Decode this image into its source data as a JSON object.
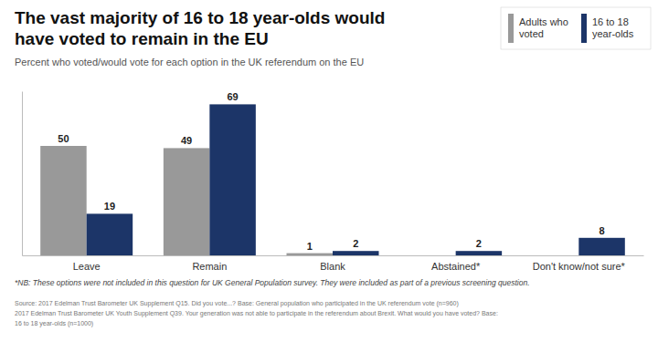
{
  "chart_data": {
    "type": "bar",
    "title": "The vast majority of 16 to 18 year-olds would\nhave voted to remain in the EU",
    "subtitle": "Percent who voted/would vote for each option in the UK referendum on the EU",
    "categories": [
      "Leave",
      "Remain",
      "Blank",
      "Abstained*",
      "Don't know/not sure*"
    ],
    "series": [
      {
        "name": "Adults who\nvoted",
        "color": "#999999",
        "values": [
          50,
          49,
          1,
          0,
          0
        ]
      },
      {
        "name": "16 to 18\nyear-olds",
        "color": "#1c3568",
        "values": [
          19,
          69,
          2,
          2,
          8
        ]
      }
    ],
    "ylim": [
      0,
      75
    ],
    "grid": false,
    "legend": "upper right",
    "data_labels": true,
    "tick_labels": "x",
    "annotations": [
      "*NB: These options were not included in this question for UK General Population survey. They were included as part of a previous screening question.",
      "Source: 2017 Edelman Trust Barometer UK Supplement Q15. Did you vote...? Base: General population who participated in the UK referendum vote (n=960)",
      "2017 Edelman Trust Barometer UK Youth Supplement Q39. Your generation was not able to participate in the referendum about Brexit. What would you have voted? Base:",
      "16 to 18 year-olds (n=1000)"
    ]
  }
}
